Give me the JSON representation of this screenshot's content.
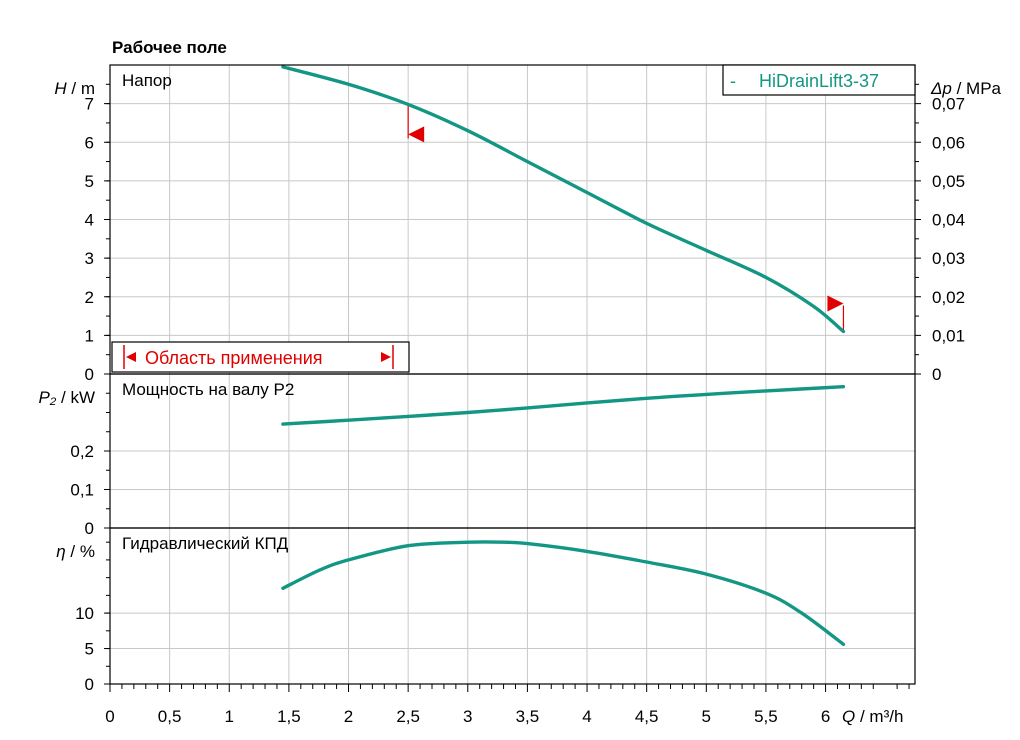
{
  "title": "Рабочее поле",
  "colors": {
    "curve": "#139784",
    "range": "#e00000"
  },
  "x_axis": {
    "symbol": "Q",
    "unit": "m³/h",
    "ticks": [
      0,
      0.5,
      1,
      1.5,
      2,
      2.5,
      3,
      3.5,
      4,
      4.5,
      5,
      5.5,
      6
    ],
    "tick_labels": [
      "0",
      "0,5",
      "1",
      "1,5",
      "2",
      "2,5",
      "3",
      "3,5",
      "4",
      "4,5",
      "5",
      "5,5",
      "6"
    ]
  },
  "legend": {
    "marker": "-",
    "name": "HiDrainLift3-37",
    "placement": "top-right"
  },
  "application_range": {
    "label": "Область применения",
    "q_min": 2.5,
    "q_max": 6.15
  },
  "chart_data": [
    {
      "type": "line",
      "panel": "head",
      "label": "Напор",
      "y_symbol": "H",
      "y_unit": "m",
      "right_symbol": "Δp",
      "right_unit": "MPa",
      "xlim": [
        0,
        6.75
      ],
      "ylim": [
        0,
        8
      ],
      "yticks": [
        0,
        1,
        2,
        3,
        4,
        5,
        6,
        7
      ],
      "ytick_labels": [
        "0",
        "1",
        "2",
        "3",
        "4",
        "5",
        "6",
        "7"
      ],
      "right_ticks": [
        0,
        0.01,
        0.02,
        0.03,
        0.04,
        0.05,
        0.06,
        0.07
      ],
      "right_tick_labels": [
        "0",
        "0,01",
        "0,02",
        "0,03",
        "0,04",
        "0,05",
        "0,06",
        "0,07"
      ],
      "grid": true,
      "series": [
        {
          "name": "HiDrainLift3-37",
          "x": [
            1.45,
            2.0,
            2.5,
            3.0,
            3.5,
            4.0,
            4.5,
            5.0,
            5.5,
            5.9,
            6.15
          ],
          "y": [
            7.95,
            7.5,
            6.98,
            6.3,
            5.5,
            4.7,
            3.9,
            3.2,
            2.5,
            1.75,
            1.1
          ]
        }
      ]
    },
    {
      "type": "line",
      "panel": "power",
      "label": "Мощность на валу P2",
      "y_symbol": "P₂",
      "y_unit": "kW",
      "xlim": [
        0,
        6.75
      ],
      "ylim": [
        0,
        0.4
      ],
      "yticks": [
        0,
        0.1,
        0.2
      ],
      "ytick_labels": [
        "0",
        "0,1",
        "0,2"
      ],
      "grid": true,
      "series": [
        {
          "name": "HiDrainLift3-37",
          "x": [
            1.45,
            2.0,
            2.5,
            3.0,
            3.5,
            4.0,
            4.5,
            5.0,
            5.5,
            6.15
          ],
          "y": [
            0.27,
            0.28,
            0.29,
            0.3,
            0.312,
            0.325,
            0.337,
            0.347,
            0.356,
            0.367
          ]
        }
      ]
    },
    {
      "type": "line",
      "panel": "efficiency",
      "label": "Гидравлический КПД",
      "y_symbol": "η",
      "y_unit": "%",
      "xlim": [
        0,
        6.75
      ],
      "ylim": [
        0,
        22
      ],
      "yticks": [
        0,
        5,
        10
      ],
      "ytick_labels": [
        "0",
        "5",
        "10"
      ],
      "grid": true,
      "series": [
        {
          "name": "HiDrainLift3-37",
          "x": [
            1.45,
            1.75,
            2.0,
            2.5,
            3.0,
            3.3,
            3.5,
            4.0,
            4.5,
            5.0,
            5.5,
            5.8,
            6.15
          ],
          "y": [
            13.5,
            16.0,
            17.5,
            19.5,
            20.0,
            20.0,
            19.8,
            18.7,
            17.2,
            15.5,
            12.8,
            10.0,
            5.6
          ]
        }
      ]
    }
  ]
}
